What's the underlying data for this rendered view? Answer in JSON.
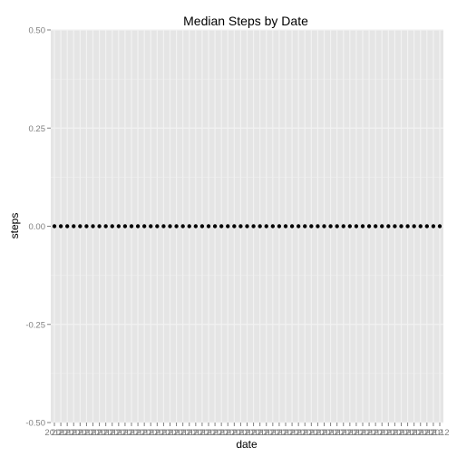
{
  "chart_data": {
    "type": "scatter",
    "title": "Median Steps by Date",
    "xlabel": "date",
    "ylabel": "steps",
    "ylim": [
      -0.5,
      0.5
    ],
    "y_ticks": [
      -0.5,
      -0.25,
      0,
      0.25,
      0.5
    ],
    "y_tick_labels": [
      "-0.50",
      "-0.25",
      "0.00",
      "0.25",
      "0.50"
    ],
    "x_tick_label": "2012",
    "grid": true,
    "colors": {
      "panel": "#e5e5e5",
      "grid": "#f2f2f2",
      "point": "#000000"
    },
    "series": [
      {
        "x": [
          "2012-10-01",
          "2012-10-02",
          "2012-10-03",
          "2012-10-04",
          "2012-10-05",
          "2012-10-06",
          "2012-10-07",
          "2012-10-08",
          "2012-10-09",
          "2012-10-10",
          "2012-10-11",
          "2012-10-12",
          "2012-10-13",
          "2012-10-14",
          "2012-10-15",
          "2012-10-16",
          "2012-10-17",
          "2012-10-18",
          "2012-10-19",
          "2012-10-20",
          "2012-10-21",
          "2012-10-22",
          "2012-10-23",
          "2012-10-24",
          "2012-10-25",
          "2012-10-26",
          "2012-10-27",
          "2012-10-28",
          "2012-10-29",
          "2012-10-30",
          "2012-10-31",
          "2012-11-01",
          "2012-11-02",
          "2012-11-03",
          "2012-11-04",
          "2012-11-05",
          "2012-11-06",
          "2012-11-07",
          "2012-11-08",
          "2012-11-09",
          "2012-11-10",
          "2012-11-11",
          "2012-11-12",
          "2012-11-13",
          "2012-11-14",
          "2012-11-15",
          "2012-11-16",
          "2012-11-17",
          "2012-11-18",
          "2012-11-19",
          "2012-11-20",
          "2012-11-21",
          "2012-11-22",
          "2012-11-23",
          "2012-11-24",
          "2012-11-25",
          "2012-11-26",
          "2012-11-27",
          "2012-11-28",
          "2012-11-29",
          "2012-11-30"
        ],
        "y": [
          0,
          0,
          0,
          0,
          0,
          0,
          0,
          0,
          0,
          0,
          0,
          0,
          0,
          0,
          0,
          0,
          0,
          0,
          0,
          0,
          0,
          0,
          0,
          0,
          0,
          0,
          0,
          0,
          0,
          0,
          0,
          0,
          0,
          0,
          0,
          0,
          0,
          0,
          0,
          0,
          0,
          0,
          0,
          0,
          0,
          0,
          0,
          0,
          0,
          0,
          0,
          0,
          0,
          0,
          0,
          0,
          0,
          0,
          0,
          0,
          0
        ]
      }
    ]
  }
}
